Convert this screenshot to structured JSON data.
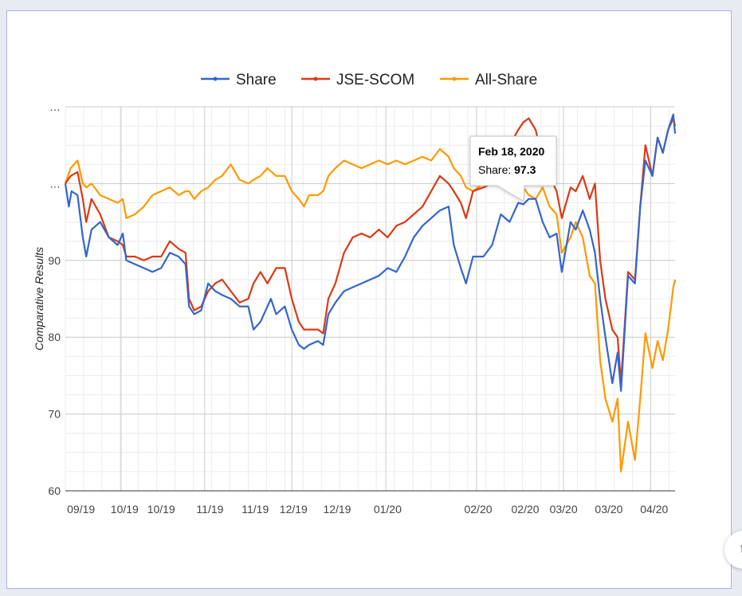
{
  "chart_data": {
    "type": "line",
    "ylabel": "Comparative Results",
    "xlabel": "",
    "ylim": [
      60,
      110
    ],
    "y_ticks": [
      "60",
      "70",
      "80",
      "90",
      "…",
      "…"
    ],
    "y_tick_values": [
      60,
      70,
      80,
      90,
      100,
      110
    ],
    "x_tick_labels": [
      "09/19",
      "10/19",
      "10/19",
      "11/19",
      "11/19",
      "12/19",
      "12/19",
      "01/20",
      "02/20",
      "02/20",
      "03/20",
      "03/20",
      "04/20"
    ],
    "x_tick_positions": [
      0.9,
      3.4,
      5.5,
      8.3,
      10.9,
      13.1,
      15.6,
      18.5,
      23.7,
      26.4,
      28.6,
      31.2,
      33.8
    ],
    "x_range": [
      0,
      35
    ],
    "legend_position": "top",
    "series": [
      {
        "name": "Share",
        "color": "#3366cc",
        "points": [
          [
            0,
            100
          ],
          [
            0.2,
            97
          ],
          [
            0.35,
            99
          ],
          [
            0.7,
            98.5
          ],
          [
            1.0,
            93
          ],
          [
            1.2,
            90.5
          ],
          [
            1.5,
            94
          ],
          [
            2.0,
            95
          ],
          [
            2.5,
            93
          ],
          [
            3.0,
            92
          ],
          [
            3.3,
            93.5
          ],
          [
            3.5,
            90
          ],
          [
            4.0,
            89.5
          ],
          [
            4.5,
            89
          ],
          [
            5.0,
            88.5
          ],
          [
            5.5,
            89
          ],
          [
            6.0,
            91
          ],
          [
            6.5,
            90.5
          ],
          [
            6.9,
            89.5
          ],
          [
            7.1,
            84
          ],
          [
            7.4,
            83
          ],
          [
            7.8,
            83.5
          ],
          [
            8.2,
            87
          ],
          [
            8.6,
            86
          ],
          [
            9.0,
            85.5
          ],
          [
            9.5,
            85
          ],
          [
            10.0,
            84
          ],
          [
            10.5,
            84
          ],
          [
            10.8,
            81
          ],
          [
            11.2,
            82
          ],
          [
            11.8,
            85
          ],
          [
            12.1,
            83
          ],
          [
            12.6,
            84
          ],
          [
            13.0,
            81
          ],
          [
            13.4,
            79
          ],
          [
            13.7,
            78.5
          ],
          [
            14.0,
            79
          ],
          [
            14.5,
            79.5
          ],
          [
            14.8,
            79
          ],
          [
            15.1,
            83
          ],
          [
            15.5,
            84.5
          ],
          [
            16.0,
            86
          ],
          [
            16.5,
            86.5
          ],
          [
            17.0,
            87
          ],
          [
            17.5,
            87.5
          ],
          [
            18.0,
            88
          ],
          [
            18.5,
            89
          ],
          [
            19.0,
            88.5
          ],
          [
            19.5,
            90.5
          ],
          [
            20.0,
            93
          ],
          [
            20.5,
            94.5
          ],
          [
            21.0,
            95.5
          ],
          [
            21.5,
            96.5
          ],
          [
            22.0,
            97
          ],
          [
            22.3,
            92
          ],
          [
            22.7,
            89
          ],
          [
            23.0,
            87
          ],
          [
            23.4,
            90.5
          ],
          [
            24.0,
            90.5
          ],
          [
            24.5,
            92
          ],
          [
            25.0,
            96
          ],
          [
            25.5,
            95
          ],
          [
            26.0,
            97.5
          ],
          [
            26.3,
            97.3
          ],
          [
            26.6,
            98
          ],
          [
            27.0,
            98
          ],
          [
            27.4,
            95
          ],
          [
            27.8,
            93
          ],
          [
            28.2,
            93.5
          ],
          [
            28.5,
            88.5
          ],
          [
            29.0,
            95
          ],
          [
            29.3,
            94
          ],
          [
            29.7,
            96.5
          ],
          [
            30.1,
            94
          ],
          [
            30.4,
            91
          ],
          [
            30.7,
            85
          ],
          [
            31.0,
            80
          ],
          [
            31.4,
            74
          ],
          [
            31.7,
            78
          ],
          [
            31.9,
            73
          ],
          [
            32.3,
            88
          ],
          [
            32.7,
            87
          ],
          [
            33.0,
            97
          ],
          [
            33.3,
            103
          ],
          [
            33.7,
            101
          ],
          [
            34.0,
            106
          ],
          [
            34.3,
            104
          ],
          [
            34.6,
            107
          ],
          [
            34.9,
            109
          ],
          [
            35.0,
            106.5
          ]
        ]
      },
      {
        "name": "JSE-SCOM",
        "color": "#dc3912",
        "points": [
          [
            0,
            100
          ],
          [
            0.3,
            101
          ],
          [
            0.7,
            101.5
          ],
          [
            1.0,
            98
          ],
          [
            1.2,
            95
          ],
          [
            1.5,
            98
          ],
          [
            2.0,
            96
          ],
          [
            2.5,
            93
          ],
          [
            3.0,
            92.5
          ],
          [
            3.3,
            92
          ],
          [
            3.5,
            90.5
          ],
          [
            4.0,
            90.5
          ],
          [
            4.5,
            90
          ],
          [
            5.0,
            90.5
          ],
          [
            5.5,
            90.5
          ],
          [
            6.0,
            92.5
          ],
          [
            6.5,
            91.5
          ],
          [
            6.9,
            91
          ],
          [
            7.1,
            85
          ],
          [
            7.4,
            83.5
          ],
          [
            7.8,
            84
          ],
          [
            8.2,
            86
          ],
          [
            8.6,
            87
          ],
          [
            9.0,
            87.5
          ],
          [
            9.5,
            86
          ],
          [
            10.0,
            84.5
          ],
          [
            10.5,
            85
          ],
          [
            10.8,
            87
          ],
          [
            11.2,
            88.5
          ],
          [
            11.6,
            87
          ],
          [
            12.1,
            89
          ],
          [
            12.6,
            89
          ],
          [
            13.0,
            85
          ],
          [
            13.4,
            82
          ],
          [
            13.7,
            81
          ],
          [
            14.0,
            81
          ],
          [
            14.5,
            81
          ],
          [
            14.8,
            80.5
          ],
          [
            15.1,
            85
          ],
          [
            15.5,
            87
          ],
          [
            16.0,
            91
          ],
          [
            16.5,
            93
          ],
          [
            17.0,
            93.5
          ],
          [
            17.5,
            93
          ],
          [
            18.0,
            94
          ],
          [
            18.5,
            93
          ],
          [
            19.0,
            94.5
          ],
          [
            19.5,
            95
          ],
          [
            20.0,
            96
          ],
          [
            20.5,
            97
          ],
          [
            21.0,
            99
          ],
          [
            21.5,
            101
          ],
          [
            22.0,
            100
          ],
          [
            22.3,
            99
          ],
          [
            22.7,
            97.5
          ],
          [
            23.0,
            95.5
          ],
          [
            23.4,
            99
          ],
          [
            24.0,
            99.5
          ],
          [
            24.5,
            100
          ],
          [
            25.0,
            103
          ],
          [
            25.5,
            105
          ],
          [
            26.0,
            107
          ],
          [
            26.3,
            108
          ],
          [
            26.6,
            108.5
          ],
          [
            27.0,
            107
          ],
          [
            27.4,
            103
          ],
          [
            27.8,
            101
          ],
          [
            28.2,
            99
          ],
          [
            28.5,
            95.5
          ],
          [
            29.0,
            99.5
          ],
          [
            29.3,
            99
          ],
          [
            29.7,
            101
          ],
          [
            30.1,
            98
          ],
          [
            30.4,
            100
          ],
          [
            30.7,
            90
          ],
          [
            31.0,
            85
          ],
          [
            31.4,
            81
          ],
          [
            31.7,
            80
          ],
          [
            31.9,
            74
          ],
          [
            32.3,
            88.5
          ],
          [
            32.7,
            87.5
          ],
          [
            33.0,
            97
          ],
          [
            33.3,
            105
          ],
          [
            33.7,
            101
          ],
          [
            34.0,
            106
          ],
          [
            34.3,
            104
          ],
          [
            34.6,
            107
          ],
          [
            34.9,
            108.5
          ],
          [
            35.0,
            107.5
          ]
        ]
      },
      {
        "name": "All-Share",
        "color": "#ff9900",
        "points": [
          [
            0,
            100
          ],
          [
            0.3,
            102
          ],
          [
            0.7,
            103
          ],
          [
            1.0,
            100
          ],
          [
            1.2,
            99.5
          ],
          [
            1.5,
            100
          ],
          [
            2.0,
            98.5
          ],
          [
            2.5,
            98
          ],
          [
            3.0,
            97.5
          ],
          [
            3.3,
            98
          ],
          [
            3.5,
            95.5
          ],
          [
            4.0,
            96
          ],
          [
            4.5,
            97
          ],
          [
            5.0,
            98.5
          ],
          [
            5.5,
            99
          ],
          [
            6.0,
            99.5
          ],
          [
            6.5,
            98.5
          ],
          [
            6.9,
            99
          ],
          [
            7.1,
            99
          ],
          [
            7.4,
            98
          ],
          [
            7.8,
            99
          ],
          [
            8.2,
            99.5
          ],
          [
            8.6,
            100.5
          ],
          [
            9.0,
            101
          ],
          [
            9.5,
            102.5
          ],
          [
            10.0,
            100.5
          ],
          [
            10.5,
            100
          ],
          [
            10.8,
            100.5
          ],
          [
            11.2,
            101
          ],
          [
            11.6,
            102
          ],
          [
            12.1,
            101
          ],
          [
            12.6,
            101
          ],
          [
            13.0,
            99
          ],
          [
            13.4,
            98
          ],
          [
            13.7,
            97
          ],
          [
            14.0,
            98.5
          ],
          [
            14.5,
            98.5
          ],
          [
            14.8,
            99
          ],
          [
            15.1,
            101
          ],
          [
            15.5,
            102
          ],
          [
            16.0,
            103
          ],
          [
            16.5,
            102.5
          ],
          [
            17.0,
            102
          ],
          [
            17.5,
            102.5
          ],
          [
            18.0,
            103
          ],
          [
            18.5,
            102.5
          ],
          [
            19.0,
            103
          ],
          [
            19.5,
            102.5
          ],
          [
            20.0,
            103
          ],
          [
            20.5,
            103.5
          ],
          [
            21.0,
            103
          ],
          [
            21.5,
            104.5
          ],
          [
            22.0,
            103.5
          ],
          [
            22.3,
            102
          ],
          [
            22.7,
            101
          ],
          [
            23.0,
            99.5
          ],
          [
            23.4,
            99
          ],
          [
            24.0,
            100
          ],
          [
            24.5,
            101.5
          ],
          [
            25.0,
            103
          ],
          [
            25.5,
            102
          ],
          [
            26.0,
            100.5
          ],
          [
            26.3,
            99.5
          ],
          [
            26.6,
            98.5
          ],
          [
            27.0,
            98
          ],
          [
            27.4,
            99.5
          ],
          [
            27.8,
            97
          ],
          [
            28.2,
            96
          ],
          [
            28.5,
            91
          ],
          [
            29.0,
            93
          ],
          [
            29.3,
            95
          ],
          [
            29.7,
            93
          ],
          [
            30.1,
            88
          ],
          [
            30.4,
            87
          ],
          [
            30.7,
            77
          ],
          [
            31.0,
            72
          ],
          [
            31.4,
            69
          ],
          [
            31.7,
            72
          ],
          [
            31.9,
            62.5
          ],
          [
            32.3,
            69
          ],
          [
            32.7,
            64
          ],
          [
            33.0,
            72
          ],
          [
            33.3,
            80.5
          ],
          [
            33.7,
            76
          ],
          [
            34.0,
            79.5
          ],
          [
            34.3,
            77
          ],
          [
            34.6,
            81
          ],
          [
            34.9,
            86.5
          ],
          [
            35.0,
            87.5
          ]
        ]
      }
    ],
    "tooltip": {
      "date": "Feb 18, 2020",
      "series_label": "Share:",
      "value": "97.3",
      "x": 26.3,
      "y": 97.3
    }
  },
  "icons": {
    "scroll_button": "chevron-up-icon"
  }
}
